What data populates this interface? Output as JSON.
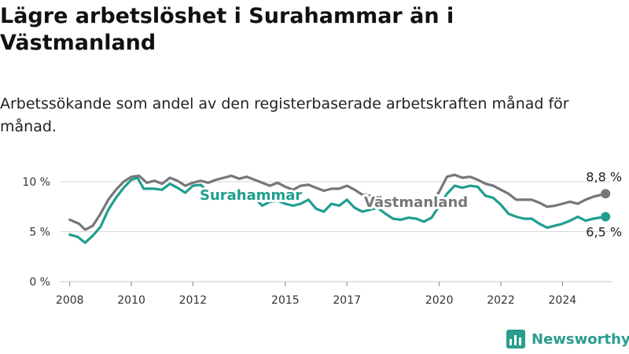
{
  "title": "Lägre arbetslöshet i Surahammar än i Västmanland",
  "subtitle": "Arbetssökande som andel av den registerbaserade arbetskraften månad för månad.",
  "brand": "Newsworthy",
  "colors": {
    "surahammar": "#1f9e8f",
    "vastmanland": "#77767b",
    "grid": "#d6d6d6",
    "brand": "#2a9d8f"
  },
  "chart_data": {
    "type": "line",
    "ylim": [
      0,
      11.5
    ],
    "yticks": [
      0,
      5,
      10
    ],
    "ytick_labels": [
      "0 %",
      "5 %",
      "10 %"
    ],
    "xlim": [
      2007.7,
      2025.6
    ],
    "xticks": [
      2008,
      2010,
      2012,
      2015,
      2017,
      2020,
      2022,
      2024
    ],
    "xtick_labels": [
      "2008",
      "2010",
      "2012",
      "2015",
      "2017",
      "2020",
      "2022",
      "2024"
    ],
    "grid": true,
    "series": [
      {
        "name": "Västmanland",
        "end_label": "8,8 %",
        "points": [
          [
            2008.0,
            6.2
          ],
          [
            2008.3,
            5.8
          ],
          [
            2008.5,
            5.2
          ],
          [
            2008.75,
            5.6
          ],
          [
            2009.0,
            6.8
          ],
          [
            2009.25,
            8.2
          ],
          [
            2009.5,
            9.2
          ],
          [
            2009.75,
            10.0
          ],
          [
            2010.0,
            10.5
          ],
          [
            2010.25,
            10.6
          ],
          [
            2010.5,
            9.9
          ],
          [
            2010.75,
            10.1
          ],
          [
            2011.0,
            9.8
          ],
          [
            2011.25,
            10.4
          ],
          [
            2011.5,
            10.1
          ],
          [
            2011.75,
            9.6
          ],
          [
            2012.0,
            9.9
          ],
          [
            2012.25,
            10.1
          ],
          [
            2012.5,
            9.9
          ],
          [
            2012.75,
            10.2
          ],
          [
            2013.0,
            10.4
          ],
          [
            2013.25,
            10.6
          ],
          [
            2013.5,
            10.3
          ],
          [
            2013.75,
            10.5
          ],
          [
            2014.0,
            10.2
          ],
          [
            2014.25,
            9.9
          ],
          [
            2014.5,
            9.6
          ],
          [
            2014.75,
            9.9
          ],
          [
            2015.0,
            9.5
          ],
          [
            2015.25,
            9.2
          ],
          [
            2015.5,
            9.6
          ],
          [
            2015.75,
            9.7
          ],
          [
            2016.0,
            9.4
          ],
          [
            2016.25,
            9.1
          ],
          [
            2016.5,
            9.3
          ],
          [
            2016.75,
            9.3
          ],
          [
            2017.0,
            9.6
          ],
          [
            2017.25,
            9.2
          ],
          [
            2017.5,
            8.7
          ],
          [
            2017.75,
            8.6
          ],
          [
            2018.0,
            8.4
          ],
          [
            2018.25,
            8.2
          ],
          [
            2018.5,
            8.0
          ],
          [
            2018.75,
            8.1
          ],
          [
            2019.0,
            8.0
          ],
          [
            2019.25,
            7.9
          ],
          [
            2019.5,
            7.8
          ],
          [
            2019.75,
            7.9
          ],
          [
            2020.0,
            9.0
          ],
          [
            2020.25,
            10.5
          ],
          [
            2020.5,
            10.7
          ],
          [
            2020.75,
            10.4
          ],
          [
            2021.0,
            10.5
          ],
          [
            2021.25,
            10.2
          ],
          [
            2021.5,
            9.8
          ],
          [
            2021.75,
            9.6
          ],
          [
            2022.0,
            9.2
          ],
          [
            2022.25,
            8.8
          ],
          [
            2022.5,
            8.2
          ],
          [
            2022.75,
            8.2
          ],
          [
            2023.0,
            8.2
          ],
          [
            2023.25,
            7.9
          ],
          [
            2023.5,
            7.5
          ],
          [
            2023.75,
            7.6
          ],
          [
            2024.0,
            7.8
          ],
          [
            2024.25,
            8.0
          ],
          [
            2024.5,
            7.8
          ],
          [
            2024.75,
            8.2
          ],
          [
            2025.0,
            8.5
          ],
          [
            2025.4,
            8.8
          ]
        ]
      },
      {
        "name": "Surahammar",
        "end_label": "6,5 %",
        "points": [
          [
            2008.0,
            4.7
          ],
          [
            2008.25,
            4.5
          ],
          [
            2008.5,
            3.9
          ],
          [
            2008.75,
            4.6
          ],
          [
            2009.0,
            5.5
          ],
          [
            2009.25,
            7.2
          ],
          [
            2009.5,
            8.4
          ],
          [
            2009.75,
            9.4
          ],
          [
            2010.0,
            10.2
          ],
          [
            2010.2,
            10.4
          ],
          [
            2010.4,
            9.3
          ],
          [
            2010.75,
            9.3
          ],
          [
            2011.0,
            9.2
          ],
          [
            2011.25,
            9.8
          ],
          [
            2011.5,
            9.4
          ],
          [
            2011.75,
            8.9
          ],
          [
            2012.0,
            9.6
          ],
          [
            2012.25,
            9.7
          ],
          [
            2012.5,
            9.0
          ],
          [
            2012.75,
            8.8
          ],
          [
            2013.0,
            8.9
          ],
          [
            2013.25,
            9.0
          ],
          [
            2013.5,
            8.6
          ],
          [
            2013.75,
            8.5
          ],
          [
            2014.0,
            8.4
          ],
          [
            2014.25,
            7.6
          ],
          [
            2014.5,
            8.0
          ],
          [
            2014.75,
            8.1
          ],
          [
            2015.0,
            7.8
          ],
          [
            2015.25,
            7.6
          ],
          [
            2015.5,
            7.8
          ],
          [
            2015.75,
            8.2
          ],
          [
            2016.0,
            7.3
          ],
          [
            2016.25,
            7.0
          ],
          [
            2016.5,
            7.8
          ],
          [
            2016.75,
            7.6
          ],
          [
            2017.0,
            8.2
          ],
          [
            2017.25,
            7.4
          ],
          [
            2017.5,
            7.0
          ],
          [
            2017.75,
            7.2
          ],
          [
            2018.0,
            7.4
          ],
          [
            2018.25,
            6.8
          ],
          [
            2018.5,
            6.3
          ],
          [
            2018.75,
            6.2
          ],
          [
            2019.0,
            6.4
          ],
          [
            2019.25,
            6.3
          ],
          [
            2019.5,
            6.0
          ],
          [
            2019.75,
            6.4
          ],
          [
            2020.0,
            7.6
          ],
          [
            2020.25,
            8.8
          ],
          [
            2020.5,
            9.6
          ],
          [
            2020.75,
            9.4
          ],
          [
            2021.0,
            9.6
          ],
          [
            2021.25,
            9.5
          ],
          [
            2021.5,
            8.6
          ],
          [
            2021.75,
            8.4
          ],
          [
            2022.0,
            7.7
          ],
          [
            2022.25,
            6.8
          ],
          [
            2022.5,
            6.5
          ],
          [
            2022.75,
            6.3
          ],
          [
            2023.0,
            6.3
          ],
          [
            2023.25,
            5.8
          ],
          [
            2023.5,
            5.4
          ],
          [
            2023.75,
            5.6
          ],
          [
            2024.0,
            5.8
          ],
          [
            2024.25,
            6.1
          ],
          [
            2024.5,
            6.5
          ],
          [
            2024.75,
            6.1
          ],
          [
            2025.0,
            6.3
          ],
          [
            2025.4,
            6.5
          ]
        ]
      }
    ]
  }
}
